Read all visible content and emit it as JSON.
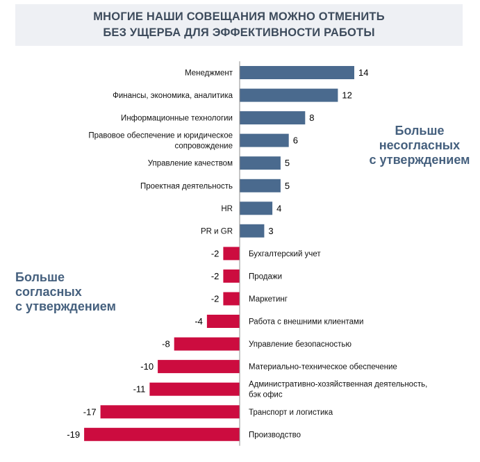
{
  "title": {
    "line1": "МНОГИЕ НАШИ СОВЕЩАНИЯ МОЖНО ОТМЕНИТЬ",
    "line2": "БЕЗ УЩЕРБА ДЛЯ ЭФФЕКТИВНОСТИ РАБОТЫ"
  },
  "callouts": {
    "disagree": [
      "Больше",
      "несогласных",
      "с утверждением"
    ],
    "agree": [
      "Больше",
      "согласных",
      "с утверждением"
    ]
  },
  "colors": {
    "positive": "#4a6a8e",
    "negative": "#cc0c3f",
    "callout": "#45607e",
    "title": "#3d4b5c"
  },
  "chart_data": {
    "type": "bar",
    "orientation": "horizontal",
    "categories": [
      [
        "Менеджмент"
      ],
      [
        "Финансы, экономика, аналитика"
      ],
      [
        "Информационные технологии"
      ],
      [
        "Правовое обеспечение и юридическое",
        "сопровождение"
      ],
      [
        "Управление качеством"
      ],
      [
        "Проектная деятельность"
      ],
      [
        "HR"
      ],
      [
        "PR и GR"
      ],
      [
        "Бухгалтерский учет"
      ],
      [
        "Продажи"
      ],
      [
        "Маркетинг"
      ],
      [
        "Работа с внешними клиентами"
      ],
      [
        "Управление безопасностью"
      ],
      [
        "Материально-техническое обеспечение"
      ],
      [
        "Административно-хозяйственная деятельность,",
        "бэк офис"
      ],
      [
        "Транспорт и логистика"
      ],
      [
        "Производство"
      ]
    ],
    "values": [
      14,
      12,
      8,
      6,
      5,
      5,
      4,
      3,
      -2,
      -2,
      -2,
      -4,
      -8,
      -10,
      -11,
      -17,
      -19
    ],
    "xlim": [
      -19,
      14
    ],
    "axis_line": true,
    "grid": false
  }
}
